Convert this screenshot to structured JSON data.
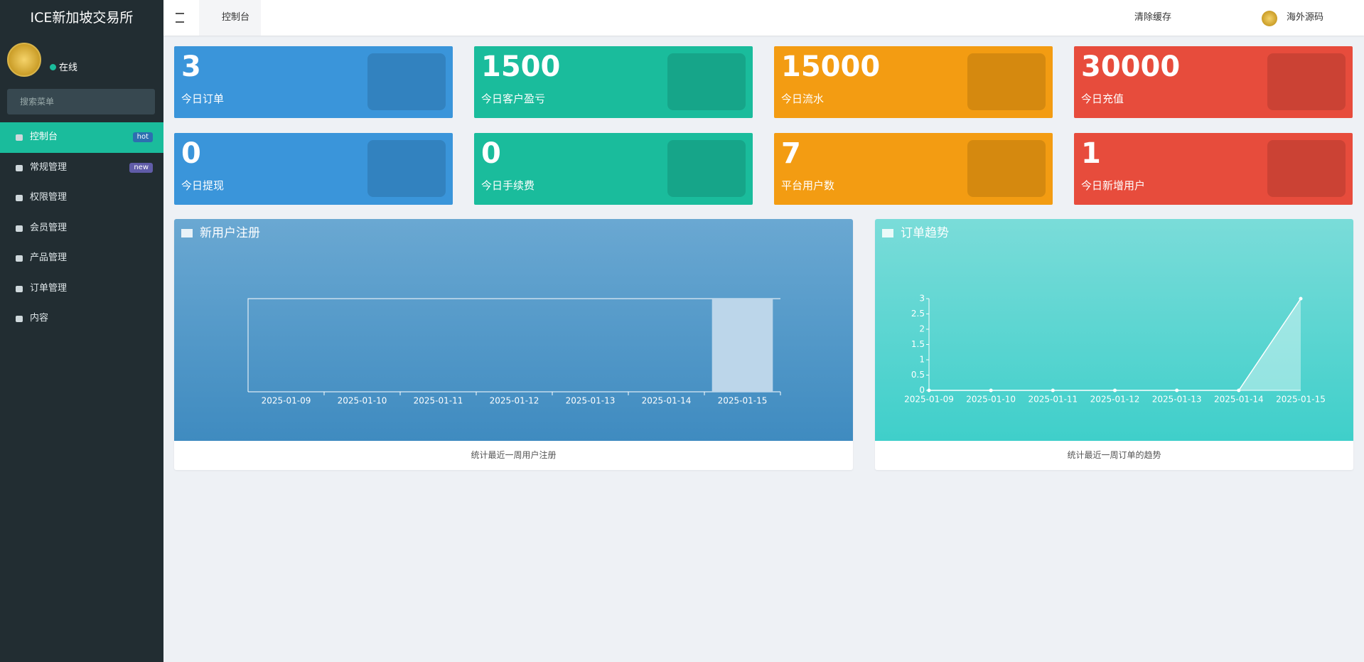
{
  "sidebar": {
    "brand": "ICE新加坡交易所",
    "status": "在线",
    "search_placeholder": "搜索菜单",
    "menu": [
      {
        "label": "控制台",
        "badge": "hot"
      },
      {
        "label": "常规管理",
        "badge": "new"
      },
      {
        "label": "权限管理"
      },
      {
        "label": "会员管理"
      },
      {
        "label": "产品管理"
      },
      {
        "label": "订单管理"
      },
      {
        "label": "内容"
      }
    ]
  },
  "header": {
    "tab": "控制台",
    "clear_cache": "清除缓存",
    "user": "海外源码"
  },
  "stats": [
    {
      "value": 3,
      "label": "今日订单"
    },
    {
      "value": 1500,
      "label": "今日客户盈亏"
    },
    {
      "value": 15000,
      "label": "今日流水"
    },
    {
      "value": 30000,
      "label": "今日充值"
    },
    {
      "value": 0,
      "label": "今日提现"
    },
    {
      "value": 0,
      "label": "今日手续费"
    },
    {
      "value": 7,
      "label": "平台用户数"
    },
    {
      "value": 1,
      "label": "今日新增用户"
    }
  ],
  "chart_data": [
    {
      "type": "bar",
      "title": "新用户注册",
      "footer": "统计最近一周用户注册",
      "categories": [
        "2025-01-09",
        "2025-01-10",
        "2025-01-11",
        "2025-01-12",
        "2025-01-13",
        "2025-01-14",
        "2025-01-15"
      ],
      "values": [
        0,
        0,
        0,
        0,
        0,
        0,
        1
      ],
      "ylim": [
        0,
        1
      ],
      "color": "#bcd6ea"
    },
    {
      "type": "line",
      "title": "订单趋势",
      "footer": "统计最近一周订单的趋势",
      "categories": [
        "2025-01-09",
        "2025-01-10",
        "2025-01-11",
        "2025-01-12",
        "2025-01-13",
        "2025-01-14",
        "2025-01-15"
      ],
      "values": [
        0,
        0,
        0,
        0,
        0,
        0,
        3
      ],
      "ylim": [
        0,
        3
      ],
      "yticks": [
        0,
        0.5,
        1,
        1.5,
        2,
        2.5,
        3
      ],
      "color": "#ffffff"
    }
  ]
}
